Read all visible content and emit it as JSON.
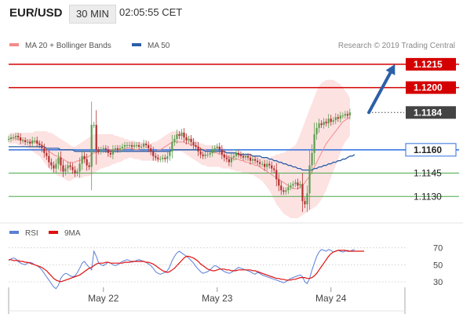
{
  "header": {
    "symbol": "EUR/USD",
    "timeframe": "30 MIN",
    "time": "02:05:55 CET"
  },
  "credit": "Research © 2019 Trading Central",
  "colors": {
    "ma20": "#f28b8b",
    "ma50": "#2b5fa8",
    "band_fill": "#fde2e2",
    "resistance": "#d40000",
    "current": "#444444",
    "pivot": "#2f6fe0",
    "support": "#4aa84a",
    "bull": "#5c9e4f",
    "bear": "#b03030",
    "rsi": "#5b7fd6",
    "rsi_ma": "#e01010",
    "arrow": "#2b5fa8"
  },
  "chart_data": [
    {
      "type": "candlestick",
      "legend": [
        {
          "name": "MA 20 + Bollinger Bands",
          "color": "#f28b8b"
        },
        {
          "name": "MA 50",
          "color": "#2b5fa8"
        }
      ],
      "ylim": [
        1.1115,
        1.1222
      ],
      "x_ticks": [
        {
          "bar": 40,
          "label": "May 22"
        },
        {
          "bar": 88,
          "label": "May 23"
        },
        {
          "bar": 136,
          "label": "May 24"
        }
      ],
      "price_levels": [
        {
          "value": 1.1215,
          "label": "1.1215",
          "kind": "resistance"
        },
        {
          "value": 1.12,
          "label": "1.1200",
          "kind": "resistance"
        },
        {
          "value": 1.1184,
          "label": "1.1184",
          "kind": "current"
        },
        {
          "value": 1.116,
          "label": "1.1160",
          "kind": "pivot"
        },
        {
          "value": 1.1145,
          "label": "1.1145",
          "kind": "support"
        },
        {
          "value": 1.113,
          "label": "1.1130",
          "kind": "support"
        }
      ],
      "projection": {
        "from_bar": 152,
        "from": 1.1184,
        "to_bar": 163,
        "to": 1.1215
      },
      "close": [
        1.1167,
        1.1168,
        1.1168,
        1.1169,
        1.1168,
        1.1166,
        1.1166,
        1.1165,
        1.1165,
        1.1164,
        1.1166,
        1.1166,
        1.1164,
        1.1163,
        1.1161,
        1.1158,
        1.1156,
        1.1152,
        1.115,
        1.1148,
        1.1151,
        1.1155,
        1.115,
        1.1146,
        1.1148,
        1.115,
        1.1149,
        1.1147,
        1.1145,
        1.1146,
        1.1151,
        1.1156,
        1.1154,
        1.115,
        1.1149,
        1.1176,
        1.1176,
        1.116,
        1.1159,
        1.116,
        1.1161,
        1.116,
        1.1158,
        1.1157,
        1.116,
        1.1161,
        1.116,
        1.1161,
        1.1162,
        1.1163,
        1.1163,
        1.1163,
        1.1162,
        1.1163,
        1.1163,
        1.1162,
        1.1162,
        1.1164,
        1.1163,
        1.1161,
        1.1159,
        1.1156,
        1.1155,
        1.1154,
        1.1154,
        1.1155,
        1.1154,
        1.1156,
        1.1159,
        1.1165,
        1.1167,
        1.117,
        1.1169,
        1.1171,
        1.1168,
        1.1166,
        1.1167,
        1.1165,
        1.1163,
        1.1162,
        1.1159,
        1.1157,
        1.1156,
        1.1157,
        1.1157,
        1.1158,
        1.116,
        1.1161,
        1.1162,
        1.116,
        1.1157,
        1.1155,
        1.1154,
        1.1152,
        1.1155,
        1.1156,
        1.1158,
        1.1157,
        1.1156,
        1.1155,
        1.1156,
        1.1155,
        1.1153,
        1.1154,
        1.1153,
        1.1152,
        1.1151,
        1.1151,
        1.1149,
        1.1151,
        1.115,
        1.1148,
        1.1147,
        1.1141,
        1.1137,
        1.1134,
        1.1133,
        1.1134,
        1.1136,
        1.1137,
        1.1138,
        1.1139,
        1.1137,
        1.1138,
        1.1127,
        1.1125,
        1.1132,
        1.115,
        1.1158,
        1.117,
        1.1174,
        1.1177,
        1.1176,
        1.1178,
        1.1177,
        1.118,
        1.1178,
        1.1179,
        1.1181,
        1.118,
        1.1182,
        1.1182,
        1.1183,
        1.1182,
        1.1184
      ],
      "ma20": [
        1.1167,
        1.1167,
        1.1168,
        1.1167,
        1.1167,
        1.1167,
        1.1166,
        1.1166,
        1.1166,
        1.1165,
        1.1165,
        1.1165,
        1.1165,
        1.1164,
        1.1163,
        1.1162,
        1.116,
        1.1159,
        1.1158,
        1.1157,
        1.1156,
        1.1156,
        1.1155,
        1.1154,
        1.1153,
        1.1152,
        1.1152,
        1.1152,
        1.1152,
        1.1153,
        1.1153,
        1.1154,
        1.1155,
        1.1155,
        1.1156,
        1.1157,
        1.1158,
        1.1158,
        1.1159,
        1.1159,
        1.1159,
        1.1159,
        1.1159,
        1.116,
        1.116,
        1.116,
        1.116,
        1.116,
        1.116,
        1.1161,
        1.1161,
        1.1161,
        1.1161,
        1.116,
        1.116,
        1.116,
        1.1159,
        1.1159,
        1.1159,
        1.1159,
        1.1159,
        1.1159,
        1.1159,
        1.116,
        1.116,
        1.1161,
        1.1162,
        1.1163,
        1.1164,
        1.1165,
        1.1165,
        1.1165,
        1.1165,
        1.1165,
        1.1165,
        1.1164,
        1.1164,
        1.1163,
        1.1163,
        1.1162,
        1.1162,
        1.1161,
        1.116,
        1.116,
        1.1159,
        1.1159,
        1.1158,
        1.1158,
        1.1158,
        1.1157,
        1.1157,
        1.1156,
        1.1156,
        1.1155,
        1.1155,
        1.1154,
        1.1154,
        1.1154,
        1.1153,
        1.1153,
        1.1152,
        1.1152,
        1.1151,
        1.1151,
        1.115,
        1.115,
        1.1149,
        1.1148,
        1.1147,
        1.1146,
        1.1145,
        1.1144,
        1.1143,
        1.1142,
        1.1141,
        1.114,
        1.1139,
        1.1138,
        1.1137,
        1.1136,
        1.1135,
        1.1135,
        1.1135,
        1.1136,
        1.1137,
        1.1139,
        1.1141,
        1.1143,
        1.1146,
        1.1149,
        1.1152,
        1.1155,
        1.1158,
        1.1161,
        1.1164,
        1.1166,
        1.1168,
        1.117,
        1.1172,
        1.1174,
        1.1176,
        1.1178,
        1.1179,
        1.118,
        1.1181
      ],
      "upper_band": [
        1.117,
        1.1171,
        1.1171,
        1.1171,
        1.1171,
        1.1171,
        1.1171,
        1.1171,
        1.1171,
        1.1171,
        1.1171,
        1.1172,
        1.1172,
        1.1172,
        1.1172,
        1.1172,
        1.1172,
        1.1171,
        1.1171,
        1.117,
        1.1169,
        1.1168,
        1.1167,
        1.1166,
        1.1165,
        1.1164,
        1.1163,
        1.1162,
        1.1162,
        1.1163,
        1.1164,
        1.1165,
        1.1166,
        1.1167,
        1.1168,
        1.1169,
        1.117,
        1.117,
        1.117,
        1.117,
        1.117,
        1.117,
        1.117,
        1.117,
        1.117,
        1.1169,
        1.1169,
        1.1168,
        1.1168,
        1.1167,
        1.1167,
        1.1166,
        1.1166,
        1.1166,
        1.1165,
        1.1165,
        1.1165,
        1.1165,
        1.1164,
        1.1164,
        1.1164,
        1.1165,
        1.1165,
        1.1166,
        1.1167,
        1.1168,
        1.1169,
        1.117,
        1.1171,
        1.1172,
        1.1172,
        1.1172,
        1.1172,
        1.1172,
        1.1171,
        1.117,
        1.1169,
        1.1168,
        1.1167,
        1.1166,
        1.1165,
        1.1164,
        1.1164,
        1.1163,
        1.1163,
        1.1163,
        1.1163,
        1.1163,
        1.1163,
        1.1162,
        1.1162,
        1.1161,
        1.116,
        1.116,
        1.116,
        1.1159,
        1.1158,
        1.1158,
        1.1158,
        1.1158,
        1.1157,
        1.1157,
        1.1157,
        1.1156,
        1.1156,
        1.1156,
        1.1155,
        1.1155,
        1.1155,
        1.1155,
        1.1155,
        1.1156,
        1.1156,
        1.1157,
        1.1157,
        1.1158,
        1.1158,
        1.1159,
        1.116,
        1.1161,
        1.1162,
        1.1163,
        1.1166,
        1.117,
        1.1174,
        1.1178,
        1.1182,
        1.1186,
        1.119,
        1.1194,
        1.1198,
        1.1201,
        1.1203,
        1.1204,
        1.1205,
        1.1205,
        1.1205,
        1.1205,
        1.1204,
        1.1203,
        1.1202,
        1.12,
        1.1198,
        1.1196,
        1.1193
      ],
      "lower_band": [
        1.1164,
        1.1164,
        1.1164,
        1.1164,
        1.1163,
        1.1163,
        1.1162,
        1.1162,
        1.1161,
        1.116,
        1.1159,
        1.1158,
        1.1157,
        1.1156,
        1.1154,
        1.1152,
        1.115,
        1.1148,
        1.1146,
        1.1145,
        1.1144,
        1.1143,
        1.1143,
        1.1142,
        1.1141,
        1.114,
        1.114,
        1.1141,
        1.1142,
        1.1142,
        1.1142,
        1.1142,
        1.1143,
        1.1143,
        1.1143,
        1.1144,
        1.1145,
        1.1146,
        1.1147,
        1.1148,
        1.1148,
        1.1149,
        1.1149,
        1.115,
        1.1151,
        1.1151,
        1.1152,
        1.1152,
        1.1153,
        1.1154,
        1.1154,
        1.1155,
        1.1155,
        1.1154,
        1.1154,
        1.1154,
        1.1153,
        1.1153,
        1.1153,
        1.1153,
        1.1153,
        1.1153,
        1.1153,
        1.1153,
        1.1154,
        1.1155,
        1.1156,
        1.1157,
        1.1158,
        1.1159,
        1.1159,
        1.1159,
        1.1159,
        1.1159,
        1.1158,
        1.1157,
        1.1156,
        1.1155,
        1.1154,
        1.1153,
        1.1152,
        1.1151,
        1.115,
        1.115,
        1.1149,
        1.1149,
        1.1149,
        1.1149,
        1.1149,
        1.1149,
        1.1148,
        1.1148,
        1.1148,
        1.1148,
        1.1147,
        1.1147,
        1.1146,
        1.1146,
        1.1146,
        1.1145,
        1.1145,
        1.1145,
        1.1144,
        1.1144,
        1.1143,
        1.1142,
        1.1141,
        1.114,
        1.1138,
        1.1136,
        1.1134,
        1.1131,
        1.1128,
        1.1125,
        1.1123,
        1.1121,
        1.1119,
        1.1118,
        1.1117,
        1.1116,
        1.1116,
        1.1116,
        1.1116,
        1.1117,
        1.1118,
        1.1119,
        1.112,
        1.1121,
        1.1122,
        1.1123,
        1.1124,
        1.1126,
        1.1128,
        1.1131,
        1.1134,
        1.1138,
        1.1142,
        1.1146,
        1.115,
        1.1154,
        1.1158,
        1.1162,
        1.1165,
        1.1167,
        1.1169
      ],
      "ma50": [
        1.1162,
        1.1162,
        1.1162,
        1.1162,
        1.1162,
        1.1162,
        1.1162,
        1.1162,
        1.1162,
        1.1162,
        1.1162,
        1.1162,
        1.1162,
        1.1162,
        1.1162,
        1.1162,
        1.1161,
        1.1161,
        1.1161,
        1.1161,
        1.1161,
        1.1161,
        1.116,
        1.116,
        1.116,
        1.116,
        1.116,
        1.116,
        1.1159,
        1.1159,
        1.1159,
        1.1159,
        1.1159,
        1.1159,
        1.1159,
        1.1159,
        1.1159,
        1.1159,
        1.1159,
        1.1159,
        1.1159,
        1.1159,
        1.1159,
        1.1159,
        1.1159,
        1.1159,
        1.1159,
        1.1159,
        1.1159,
        1.1159,
        1.1159,
        1.1159,
        1.1159,
        1.1159,
        1.1159,
        1.1159,
        1.1159,
        1.1159,
        1.1159,
        1.1159,
        1.1159,
        1.1159,
        1.1159,
        1.1159,
        1.1159,
        1.1159,
        1.1159,
        1.1159,
        1.1159,
        1.116,
        1.116,
        1.116,
        1.116,
        1.116,
        1.116,
        1.116,
        1.116,
        1.116,
        1.116,
        1.116,
        1.116,
        1.116,
        1.116,
        1.1159,
        1.1159,
        1.1159,
        1.1159,
        1.1159,
        1.1159,
        1.1159,
        1.1159,
        1.1159,
        1.1158,
        1.1158,
        1.1158,
        1.1158,
        1.1158,
        1.1157,
        1.1157,
        1.1157,
        1.1157,
        1.1157,
        1.1157,
        1.1156,
        1.1156,
        1.1156,
        1.1156,
        1.1155,
        1.1155,
        1.1155,
        1.1154,
        1.1154,
        1.1153,
        1.1153,
        1.1152,
        1.1152,
        1.1151,
        1.1151,
        1.115,
        1.115,
        1.1149,
        1.1149,
        1.1148,
        1.1148,
        1.1147,
        1.1147,
        1.1147,
        1.1147,
        1.1147,
        1.1148,
        1.1148,
        1.1149,
        1.1149,
        1.115,
        1.115,
        1.1151,
        1.1151,
        1.1152,
        1.1152,
        1.1153,
        1.1153,
        1.1154,
        1.1154,
        1.1155,
        1.1156,
        1.1156,
        1.1157
      ]
    },
    {
      "type": "line",
      "legend": [
        {
          "name": "RSI",
          "color": "#5b7fd6"
        },
        {
          "name": "9MA",
          "color": "#e01010"
        }
      ],
      "ylim": [
        18,
        78
      ],
      "y_ticks": [
        70,
        50,
        30
      ],
      "rsi": [
        55,
        57,
        58,
        57,
        54,
        52,
        51,
        50,
        52,
        53,
        52,
        50,
        49,
        47,
        44,
        40,
        36,
        32,
        28,
        24,
        22,
        26,
        34,
        38,
        40,
        39,
        37,
        36,
        37,
        41,
        46,
        52,
        54,
        50,
        47,
        44,
        66,
        60,
        52,
        50,
        49,
        51,
        53,
        52,
        50,
        49,
        50,
        52,
        54,
        55,
        56,
        55,
        53,
        54,
        55,
        56,
        55,
        54,
        53,
        51,
        49,
        46,
        42,
        40,
        39,
        40,
        41,
        43,
        48,
        55,
        60,
        64,
        66,
        64,
        62,
        60,
        58,
        55,
        52,
        48,
        45,
        42,
        40,
        41,
        42,
        44,
        47,
        49,
        48,
        46,
        44,
        42,
        41,
        40,
        41,
        43,
        45,
        47,
        46,
        45,
        44,
        43,
        42,
        40,
        39,
        41,
        40,
        38,
        37,
        36,
        35,
        34,
        33,
        32,
        31,
        30,
        29,
        30,
        32,
        34,
        35,
        36,
        37,
        38,
        36,
        30,
        28,
        34,
        44,
        52,
        60,
        65,
        68,
        67,
        66,
        68,
        67,
        65,
        66,
        67,
        66,
        65,
        66,
        67,
        66,
        67,
        68
      ],
      "rsi_ma": [
        56,
        56,
        55,
        55,
        55,
        54,
        54,
        53,
        53,
        52,
        51,
        50,
        49,
        48,
        47,
        45,
        43,
        40,
        37,
        34,
        32,
        31,
        30,
        31,
        32,
        33,
        34,
        35,
        36,
        37,
        38,
        40,
        42,
        44,
        46,
        47,
        49,
        51,
        52,
        52,
        52,
        53,
        53,
        52,
        52,
        52,
        52,
        52,
        52,
        53,
        53,
        53,
        54,
        54,
        54,
        54,
        54,
        54,
        53,
        53,
        52,
        51,
        49,
        47,
        45,
        43,
        42,
        41,
        42,
        44,
        46,
        49,
        52,
        55,
        58,
        60,
        60,
        59,
        58,
        56,
        54,
        51,
        49,
        47,
        45,
        44,
        43,
        43,
        44,
        45,
        45,
        45,
        44,
        44,
        43,
        43,
        43,
        44,
        44,
        44,
        44,
        44,
        44,
        43,
        43,
        42,
        41,
        40,
        39,
        38,
        37,
        36,
        35,
        34,
        34,
        33,
        33,
        32,
        32,
        32,
        33,
        33,
        34,
        35,
        35,
        35,
        34,
        34,
        35,
        37,
        40,
        44,
        48,
        52,
        56,
        60,
        63,
        65,
        66,
        67,
        67,
        67,
        67,
        66,
        66,
        66,
        66,
        66,
        66,
        66,
        66
      ]
    }
  ]
}
